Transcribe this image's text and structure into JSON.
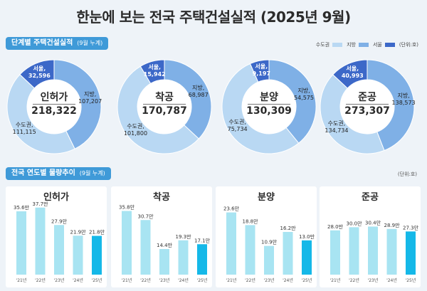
{
  "title": "한눈에 보는 전국 주택건설실적 (2025년 9월)",
  "section1": {
    "label": "단계별 주택건설실적",
    "sub": "(9월 누계)"
  },
  "section2": {
    "label": "전국 연도별 물량추이",
    "sub": "(9월 누계)"
  },
  "legend": {
    "items": [
      {
        "name": "수도권",
        "color": "#b9d8f3"
      },
      {
        "name": "지방",
        "color": "#7fb0e6"
      },
      {
        "name": "서울",
        "color": "#3c68c8"
      }
    ],
    "unit": "(단위:호)"
  },
  "unit2": "(단위:호)",
  "chart_data": [
    {
      "type": "pie",
      "center_label": "인허가",
      "total": "218,322",
      "slices": [
        {
          "name": "서울",
          "value": 32596,
          "label": "32,596"
        },
        {
          "name": "지방",
          "value": 107207,
          "label": "107,207"
        },
        {
          "name": "수도권",
          "value": 111115,
          "label": "111,115"
        }
      ]
    },
    {
      "type": "pie",
      "center_label": "착공",
      "total": "170,787",
      "slices": [
        {
          "name": "서울",
          "value": 15942,
          "label": "15,942"
        },
        {
          "name": "지방",
          "value": 68987,
          "label": "68,987"
        },
        {
          "name": "수도권",
          "value": 101800,
          "label": "101,800"
        }
      ]
    },
    {
      "type": "pie",
      "center_label": "분양",
      "total": "130,309",
      "slices": [
        {
          "name": "서울",
          "value": 9197,
          "label": "9,197"
        },
        {
          "name": "지방",
          "value": 54575,
          "label": "54,575"
        },
        {
          "name": "수도권",
          "value": 75734,
          "label": "75,734"
        }
      ]
    },
    {
      "type": "pie",
      "center_label": "준공",
      "total": "273,307",
      "slices": [
        {
          "name": "서울",
          "value": 40993,
          "label": "40,993"
        },
        {
          "name": "지방",
          "value": 138573,
          "label": "138,573"
        },
        {
          "name": "수도권",
          "value": 134734,
          "label": "134,734"
        }
      ]
    },
    {
      "type": "bar",
      "title": "인허가",
      "categories": [
        "'21년",
        "'22년",
        "'23년",
        "'24년",
        "'25년"
      ],
      "values": [
        35.6,
        37.7,
        27.9,
        21.9,
        21.8
      ],
      "labels": [
        "35.6만",
        "37.7만",
        "27.9만",
        "21.9만",
        "21.8만"
      ],
      "ylim": [
        0,
        40
      ]
    },
    {
      "type": "bar",
      "title": "착공",
      "categories": [
        "'21년",
        "'22년",
        "'23년",
        "'24년",
        "'25년"
      ],
      "values": [
        35.8,
        30.7,
        14.4,
        19.3,
        17.1
      ],
      "labels": [
        "35.8만",
        "30.7만",
        "14.4만",
        "19.3만",
        "17.1만"
      ],
      "ylim": [
        0,
        40
      ]
    },
    {
      "type": "bar",
      "title": "분양",
      "categories": [
        "'21년",
        "'22년",
        "'23년",
        "'24년",
        "'25년"
      ],
      "values": [
        23.6,
        18.8,
        10.9,
        16.2,
        13.0
      ],
      "labels": [
        "23.6만",
        "18.8만",
        "10.9만",
        "16.2만",
        "13.0만"
      ],
      "ylim": [
        0,
        27
      ]
    },
    {
      "type": "bar",
      "title": "준공",
      "categories": [
        "'21년",
        "'22년",
        "'23년",
        "'24년",
        "'25년"
      ],
      "values": [
        28.0,
        30.0,
        30.4,
        28.9,
        27.3
      ],
      "labels": [
        "28.0만",
        "30.0만",
        "30.4만",
        "28.9만",
        "27.3만"
      ],
      "ylim": [
        0,
        45
      ]
    }
  ],
  "colors": {
    "seoul": "#3c68c8",
    "jibang": "#7fb0e6",
    "sudo": "#b9d8f3",
    "bar": "#a8e4f2",
    "bar_last": "#15b8e8"
  }
}
